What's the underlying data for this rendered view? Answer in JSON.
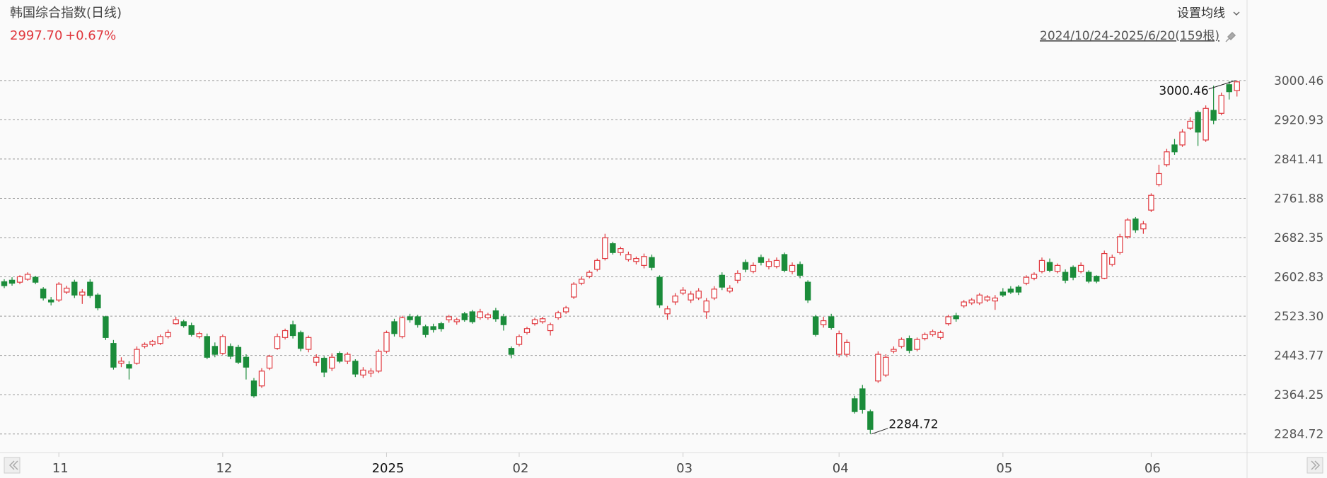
{
  "header": {
    "title": "韩国综合指数(日线)",
    "price": "2997.70",
    "change": "+0.67%",
    "menu": "设置均线",
    "range": "2024/10/24-2025/6/20(159根)"
  },
  "chart_data": {
    "type": "candlestick",
    "up_color": "#e0383e",
    "down_color": "#1b8c3a",
    "grid": true,
    "ylim": [
      2247.05,
      3060.39
    ],
    "yticks": [
      2284.72,
      {
        "value": 2364.25,
        "label": "2364.25"
      },
      2443.77,
      {
        "value": 2523.3,
        "label": "2523.30"
      },
      2602.83,
      2682.35,
      2761.88,
      2841.41,
      2920.93,
      3000.46
    ],
    "xticks": [
      {
        "value": 7,
        "label": "11"
      },
      {
        "value": 28,
        "label": "12"
      },
      {
        "value": 49,
        "label": "2025"
      },
      {
        "value": 66,
        "label": "02"
      },
      {
        "value": 87,
        "label": "03"
      },
      {
        "value": 107,
        "label": "04"
      },
      {
        "value": 128,
        "label": "05"
      },
      {
        "value": 147,
        "label": "06"
      }
    ],
    "open": [
      2593,
      2596,
      2592,
      2598,
      2602,
      2578,
      2556,
      2556,
      2572,
      2592,
      2566,
      2592,
      2566,
      2522,
      2468,
      2428,
      2425,
      2428,
      2462,
      2466,
      2468,
      2482,
      2508,
      2512,
      2504,
      2482,
      2482,
      2462,
      2448,
      2462,
      2460,
      2440,
      2392,
      2382,
      2418,
      2458,
      2480,
      2506,
      2490,
      2456,
      2430,
      2438,
      2418,
      2448,
      2432,
      2432,
      2404,
      2408,
      2412,
      2452,
      2512,
      2482,
      2522,
      2522,
      2502,
      2502,
      2508,
      2516,
      2512,
      2528,
      2532,
      2520,
      2520,
      2534,
      2522,
      2458,
      2466,
      2490,
      2508,
      2512,
      2494,
      2520,
      2532,
      2562,
      2590,
      2604,
      2618,
      2640,
      2670,
      2652,
      2638,
      2634,
      2626,
      2642,
      2602,
      2528,
      2552,
      2570,
      2556,
      2560,
      2532,
      2560,
      2606,
      2574,
      2596,
      2632,
      2614,
      2642,
      2624,
      2624,
      2648,
      2614,
      2628,
      2592,
      2522,
      2506,
      2522,
      2446,
      2446,
      2356,
      2376,
      2330,
      2392,
      2404,
      2452,
      2462,
      2478,
      2456,
      2478,
      2486,
      2480,
      2508,
      2524,
      2544,
      2550,
      2550,
      2556,
      2554,
      2572,
      2578,
      2582,
      2590,
      2600,
      2614,
      2632,
      2614,
      2612,
      2622,
      2614,
      2612,
      2604,
      2600,
      2628,
      2652,
      2684,
      2720,
      2700,
      2738,
      2790,
      2830,
      2870,
      2870,
      2904,
      2936,
      2880,
      2940,
      2934,
      2992,
      2980
    ],
    "high": [
      2598,
      2602,
      2606,
      2612,
      2605,
      2582,
      2562,
      2592,
      2585,
      2597,
      2578,
      2598,
      2570,
      2524,
      2475,
      2440,
      2432,
      2462,
      2470,
      2475,
      2486,
      2496,
      2522,
      2516,
      2510,
      2492,
      2488,
      2470,
      2486,
      2468,
      2465,
      2446,
      2398,
      2418,
      2445,
      2488,
      2498,
      2514,
      2494,
      2484,
      2446,
      2442,
      2448,
      2452,
      2450,
      2436,
      2420,
      2418,
      2456,
      2494,
      2518,
      2524,
      2528,
      2526,
      2506,
      2508,
      2512,
      2526,
      2520,
      2532,
      2536,
      2538,
      2530,
      2540,
      2528,
      2462,
      2486,
      2502,
      2520,
      2522,
      2510,
      2534,
      2544,
      2592,
      2604,
      2616,
      2640,
      2690,
      2674,
      2664,
      2654,
      2644,
      2650,
      2648,
      2606,
      2544,
      2570,
      2582,
      2574,
      2580,
      2560,
      2584,
      2612,
      2586,
      2616,
      2638,
      2632,
      2648,
      2640,
      2642,
      2652,
      2632,
      2634,
      2596,
      2526,
      2522,
      2528,
      2494,
      2476,
      2362,
      2384,
      2334,
      2452,
      2446,
      2462,
      2480,
      2484,
      2480,
      2490,
      2496,
      2494,
      2526,
      2530,
      2556,
      2560,
      2570,
      2566,
      2566,
      2580,
      2584,
      2586,
      2606,
      2612,
      2642,
      2640,
      2630,
      2618,
      2626,
      2632,
      2616,
      2606,
      2656,
      2648,
      2690,
      2722,
      2724,
      2716,
      2772,
      2830,
      2862,
      2882,
      2902,
      2926,
      2940,
      2950,
      2990,
      2976,
      2999,
      3000.46
    ],
    "low": [
      2580,
      2585,
      2588,
      2595,
      2588,
      2555,
      2545,
      2552,
      2568,
      2560,
      2548,
      2560,
      2535,
      2475,
      2415,
      2420,
      2395,
      2425,
      2458,
      2462,
      2465,
      2478,
      2506,
      2500,
      2482,
      2478,
      2436,
      2440,
      2445,
      2436,
      2426,
      2395,
      2358,
      2378,
      2414,
      2455,
      2476,
      2478,
      2452,
      2450,
      2422,
      2400,
      2412,
      2428,
      2426,
      2400,
      2398,
      2400,
      2408,
      2448,
      2482,
      2478,
      2510,
      2500,
      2480,
      2490,
      2492,
      2510,
      2506,
      2512,
      2508,
      2516,
      2516,
      2512,
      2494,
      2438,
      2462,
      2486,
      2504,
      2508,
      2484,
      2516,
      2528,
      2558,
      2586,
      2600,
      2614,
      2636,
      2648,
      2646,
      2634,
      2628,
      2620,
      2616,
      2540,
      2516,
      2546,
      2566,
      2550,
      2556,
      2518,
      2556,
      2576,
      2570,
      2590,
      2612,
      2610,
      2626,
      2618,
      2620,
      2612,
      2608,
      2600,
      2550,
      2482,
      2500,
      2496,
      2440,
      2440,
      2326,
      2326,
      2284.72,
      2388,
      2400,
      2448,
      2458,
      2448,
      2452,
      2474,
      2482,
      2476,
      2504,
      2512,
      2540,
      2546,
      2546,
      2552,
      2536,
      2562,
      2568,
      2566,
      2586,
      2596,
      2610,
      2612,
      2610,
      2590,
      2596,
      2610,
      2590,
      2590,
      2598,
      2624,
      2648,
      2680,
      2692,
      2690,
      2734,
      2786,
      2826,
      2850,
      2866,
      2900,
      2868,
      2876,
      2912,
      2930,
      2962,
      2968
    ],
    "close": [
      2585,
      2590,
      2603,
      2608,
      2592,
      2560,
      2552,
      2588,
      2580,
      2566,
      2572,
      2565,
      2540,
      2480,
      2420,
      2432,
      2418,
      2456,
      2466,
      2472,
      2482,
      2490,
      2516,
      2504,
      2486,
      2488,
      2440,
      2446,
      2482,
      2442,
      2430,
      2420,
      2362,
      2412,
      2442,
      2482,
      2494,
      2484,
      2458,
      2480,
      2440,
      2410,
      2440,
      2432,
      2446,
      2406,
      2414,
      2412,
      2452,
      2490,
      2488,
      2520,
      2516,
      2506,
      2486,
      2496,
      2498,
      2522,
      2516,
      2516,
      2512,
      2532,
      2526,
      2518,
      2506,
      2446,
      2482,
      2498,
      2516,
      2518,
      2506,
      2530,
      2540,
      2588,
      2598,
      2612,
      2636,
      2682,
      2652,
      2660,
      2648,
      2640,
      2644,
      2622,
      2546,
      2538,
      2564,
      2576,
      2568,
      2574,
      2554,
      2578,
      2582,
      2580,
      2610,
      2618,
      2626,
      2632,
      2634,
      2636,
      2616,
      2626,
      2606,
      2556,
      2486,
      2514,
      2500,
      2488,
      2470,
      2330,
      2334,
      2294,
      2446,
      2440,
      2456,
      2476,
      2454,
      2476,
      2486,
      2492,
      2490,
      2522,
      2518,
      2552,
      2556,
      2566,
      2562,
      2560,
      2566,
      2572,
      2572,
      2602,
      2608,
      2636,
      2616,
      2626,
      2596,
      2602,
      2626,
      2594,
      2594,
      2650,
      2642,
      2684,
      2718,
      2698,
      2710,
      2768,
      2812,
      2856,
      2856,
      2896,
      2918,
      2896,
      2944,
      2920,
      2970,
      2977.8,
      2997.7
    ]
  }
}
